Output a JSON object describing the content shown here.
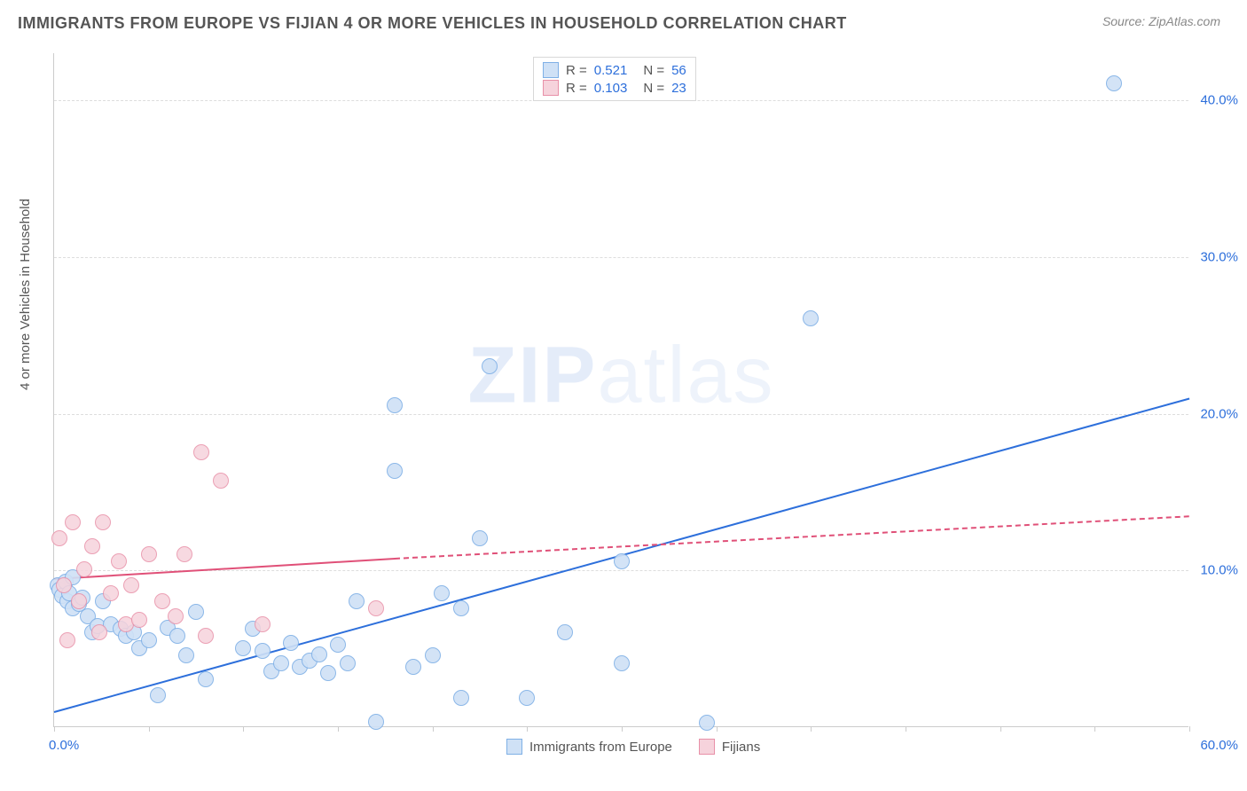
{
  "header": {
    "title": "IMMIGRANTS FROM EUROPE VS FIJIAN 4 OR MORE VEHICLES IN HOUSEHOLD CORRELATION CHART",
    "source_prefix": "Source: ",
    "source_name": "ZipAtlas.com"
  },
  "watermark": {
    "text_a": "ZIP",
    "text_b": "atlas"
  },
  "chart": {
    "type": "scatter",
    "y_axis_label": "4 or more Vehicles in Household",
    "xlim": [
      0,
      60
    ],
    "ylim": [
      0,
      43
    ],
    "background_color": "#ffffff",
    "grid_color": "#dddddd",
    "grid_dashed": true,
    "xticks_major": [
      0,
      5,
      10,
      15,
      20,
      25,
      30,
      35,
      40,
      45,
      50,
      55,
      60
    ],
    "xtick_labels": {
      "0": "0.0%",
      "60": "60.0%"
    },
    "yticks": [
      {
        "value": 10,
        "label": "10.0%"
      },
      {
        "value": 20,
        "label": "20.0%"
      },
      {
        "value": 30,
        "label": "30.0%"
      },
      {
        "value": 40,
        "label": "40.0%"
      }
    ],
    "axis_label_color": "#2d6fdb",
    "axis_label_fontsize": 15,
    "point_radius": 9,
    "point_stroke_width": 1,
    "series": [
      {
        "name": "Immigrants from Europe",
        "key": "europe",
        "point_fill": "#cfe1f6",
        "point_stroke": "#7fb0e6",
        "point_opacity": 0.9,
        "trend": {
          "color": "#2d6fdb",
          "width": 2.5,
          "solid_x_range": [
            0,
            60
          ],
          "y_start": 1.0,
          "y_end": 21.0
        },
        "data": [
          [
            0.2,
            9.0
          ],
          [
            0.3,
            8.7
          ],
          [
            0.4,
            8.3
          ],
          [
            0.6,
            9.2
          ],
          [
            0.7,
            8.0
          ],
          [
            0.8,
            8.5
          ],
          [
            1.0,
            9.5
          ],
          [
            1.0,
            7.5
          ],
          [
            1.3,
            7.8
          ],
          [
            1.5,
            8.2
          ],
          [
            1.8,
            7.0
          ],
          [
            2.0,
            6.0
          ],
          [
            2.3,
            6.4
          ],
          [
            2.6,
            8.0
          ],
          [
            3.0,
            6.5
          ],
          [
            3.5,
            6.2
          ],
          [
            3.8,
            5.8
          ],
          [
            4.2,
            6.0
          ],
          [
            4.5,
            5.0
          ],
          [
            5.0,
            5.5
          ],
          [
            5.5,
            2.0
          ],
          [
            6.0,
            6.3
          ],
          [
            6.5,
            5.8
          ],
          [
            7.0,
            4.5
          ],
          [
            7.5,
            7.3
          ],
          [
            8.0,
            3.0
          ],
          [
            10.0,
            5.0
          ],
          [
            10.5,
            6.2
          ],
          [
            11.0,
            4.8
          ],
          [
            11.5,
            3.5
          ],
          [
            12.0,
            4.0
          ],
          [
            12.5,
            5.3
          ],
          [
            13.0,
            3.8
          ],
          [
            13.5,
            4.2
          ],
          [
            14.0,
            4.6
          ],
          [
            14.5,
            3.4
          ],
          [
            15.0,
            5.2
          ],
          [
            15.5,
            4.0
          ],
          [
            16.0,
            8.0
          ],
          [
            17.0,
            0.3
          ],
          [
            18.0,
            20.5
          ],
          [
            18.0,
            16.3
          ],
          [
            19.0,
            3.8
          ],
          [
            20.0,
            4.5
          ],
          [
            20.5,
            8.5
          ],
          [
            21.5,
            7.5
          ],
          [
            21.5,
            1.8
          ],
          [
            22.5,
            12.0
          ],
          [
            23.0,
            23.0
          ],
          [
            25.0,
            1.8
          ],
          [
            27.0,
            6.0
          ],
          [
            30.0,
            4.0
          ],
          [
            30.0,
            10.5
          ],
          [
            34.5,
            0.2
          ],
          [
            40.0,
            26.0
          ],
          [
            56.0,
            41.0
          ]
        ]
      },
      {
        "name": "Fijians",
        "key": "fijians",
        "point_fill": "#f6d3dc",
        "point_stroke": "#e890a8",
        "point_opacity": 0.85,
        "trend": {
          "color": "#e05078",
          "width": 2,
          "solid_x_range": [
            0,
            18
          ],
          "dashed_x_range": [
            18,
            60
          ],
          "y_start": 9.5,
          "y_at_solid_end": 10.8,
          "y_end": 13.5
        },
        "data": [
          [
            0.3,
            12.0
          ],
          [
            0.5,
            9.0
          ],
          [
            0.7,
            5.5
          ],
          [
            1.0,
            13.0
          ],
          [
            1.3,
            8.0
          ],
          [
            1.6,
            10.0
          ],
          [
            2.0,
            11.5
          ],
          [
            2.4,
            6.0
          ],
          [
            2.6,
            13.0
          ],
          [
            3.0,
            8.5
          ],
          [
            3.4,
            10.5
          ],
          [
            3.8,
            6.5
          ],
          [
            4.1,
            9.0
          ],
          [
            4.5,
            6.8
          ],
          [
            5.0,
            11.0
          ],
          [
            5.7,
            8.0
          ],
          [
            6.4,
            7.0
          ],
          [
            6.9,
            11.0
          ],
          [
            7.8,
            17.5
          ],
          [
            8.0,
            5.8
          ],
          [
            8.8,
            15.7
          ],
          [
            11.0,
            6.5
          ],
          [
            17.0,
            7.5
          ]
        ]
      }
    ],
    "legend_top": {
      "rows": [
        {
          "swatch_fill": "#cfe1f6",
          "swatch_stroke": "#7fb0e6",
          "r_label": "R =",
          "r_value": "0.521",
          "n_label": "N =",
          "n_value": "56"
        },
        {
          "swatch_fill": "#f6d3dc",
          "swatch_stroke": "#e890a8",
          "r_label": "R =",
          "r_value": "0.103",
          "n_label": "N =",
          "n_value": "23"
        }
      ],
      "r_value_color": "#2d6fdb",
      "n_value_color": "#2d6fdb",
      "label_color": "#555555"
    },
    "legend_bottom": {
      "items": [
        {
          "swatch_fill": "#cfe1f6",
          "swatch_stroke": "#7fb0e6",
          "label": "Immigrants from Europe"
        },
        {
          "swatch_fill": "#f6d3dc",
          "swatch_stroke": "#e890a8",
          "label": "Fijians"
        }
      ]
    }
  }
}
